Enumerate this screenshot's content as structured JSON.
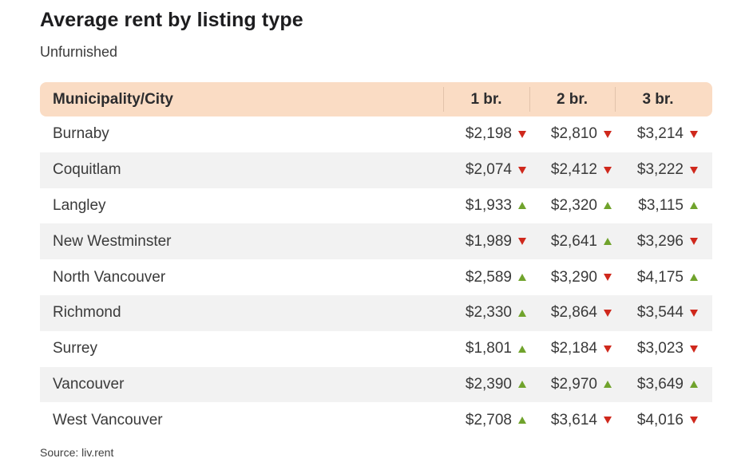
{
  "page": {
    "title": "Average rent by listing type",
    "subtitle": "Unfurnished",
    "source": "Source: liv.rent"
  },
  "colors": {
    "header_bg": "#fadcc4",
    "alt_row_bg": "#f2f2f2",
    "up_green": "#70a32c",
    "down_red": "#cf281c",
    "title_text": "#1d1d1f",
    "body_text": "#3a3a3a"
  },
  "chart_data": {
    "type": "table",
    "title": "Average rent by listing type",
    "subtitle": "Unfurnished",
    "columns": [
      "Municipality/City",
      "1 br.",
      "2 br.",
      "3 br."
    ],
    "rows": [
      {
        "city": "Burnaby",
        "cells": [
          {
            "rent": "$2,198",
            "trend": "down"
          },
          {
            "rent": "$2,810",
            "trend": "down"
          },
          {
            "rent": "$3,214",
            "trend": "down"
          }
        ]
      },
      {
        "city": "Coquitlam",
        "cells": [
          {
            "rent": "$2,074",
            "trend": "down"
          },
          {
            "rent": "$2,412",
            "trend": "down"
          },
          {
            "rent": "$3,222",
            "trend": "down"
          }
        ]
      },
      {
        "city": "Langley",
        "cells": [
          {
            "rent": "$1,933",
            "trend": "up"
          },
          {
            "rent": "$2,320",
            "trend": "up"
          },
          {
            "rent": "$3,115",
            "trend": "up"
          }
        ]
      },
      {
        "city": "New Westminster",
        "cells": [
          {
            "rent": "$1,989",
            "trend": "down"
          },
          {
            "rent": "$2,641",
            "trend": "up"
          },
          {
            "rent": "$3,296",
            "trend": "down"
          }
        ]
      },
      {
        "city": "North Vancouver",
        "cells": [
          {
            "rent": "$2,589",
            "trend": "up"
          },
          {
            "rent": "$3,290",
            "trend": "down"
          },
          {
            "rent": "$4,175",
            "trend": "up"
          }
        ]
      },
      {
        "city": "Richmond",
        "cells": [
          {
            "rent": "$2,330",
            "trend": "up"
          },
          {
            "rent": "$2,864",
            "trend": "down"
          },
          {
            "rent": "$3,544",
            "trend": "down"
          }
        ]
      },
      {
        "city": "Surrey",
        "cells": [
          {
            "rent": "$1,801",
            "trend": "up"
          },
          {
            "rent": "$2,184",
            "trend": "down"
          },
          {
            "rent": "$3,023",
            "trend": "down"
          }
        ]
      },
      {
        "city": "Vancouver",
        "cells": [
          {
            "rent": "$2,390",
            "trend": "up"
          },
          {
            "rent": "$2,970",
            "trend": "up"
          },
          {
            "rent": "$3,649",
            "trend": "up"
          }
        ]
      },
      {
        "city": "West Vancouver",
        "cells": [
          {
            "rent": "$2,708",
            "trend": "up"
          },
          {
            "rent": "$3,614",
            "trend": "down"
          },
          {
            "rent": "$4,016",
            "trend": "down"
          }
        ]
      }
    ],
    "source": "Source: liv.rent"
  }
}
